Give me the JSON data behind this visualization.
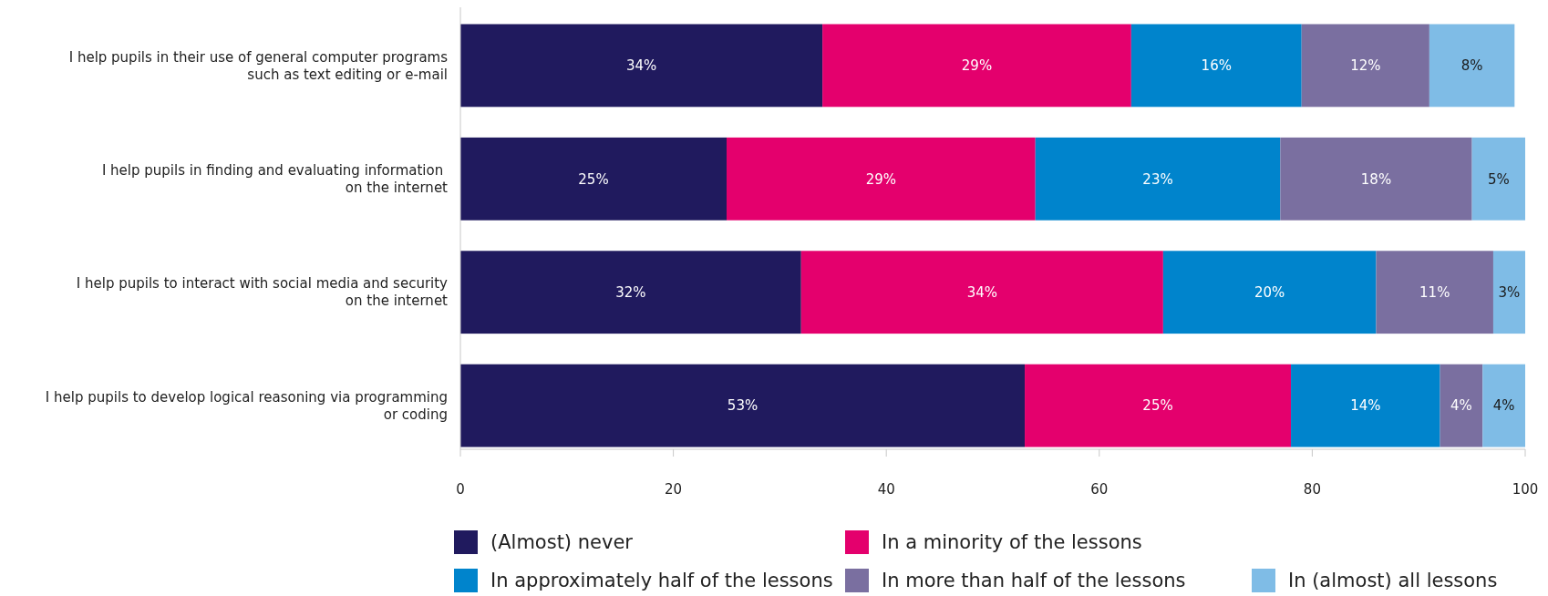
{
  "chart_data": {
    "type": "bar",
    "orientation": "horizontal",
    "stacked": true,
    "legend": "bottom",
    "categories": [
      "I help pupils in their use of general computer programs\nsuch as text editing or e-mail",
      "I help pupils in finding and evaluating information \non the internet",
      "I help pupils to interact with social media and security\non the internet",
      "I help pupils to develop logical reasoning via programming\nor coding"
    ],
    "series": [
      {
        "name": "(Almost) never",
        "color": "#201a5e",
        "values": [
          34,
          25,
          32,
          53
        ],
        "value_labels": [
          "34%",
          "25%",
          "32%",
          "53%"
        ]
      },
      {
        "name": "In a minority of the lessons",
        "color": "#e4006d",
        "values": [
          29,
          29,
          34,
          25
        ],
        "value_labels": [
          "29%",
          "29%",
          "34%",
          "25%"
        ]
      },
      {
        "name": "In approximately half of the lessons",
        "color": "#0084cc",
        "values": [
          16,
          23,
          20,
          14
        ],
        "value_labels": [
          "16%",
          "23%",
          "20%",
          "14%"
        ]
      },
      {
        "name": "In more than half of the lessons",
        "color": "#7a6fa0",
        "values": [
          12,
          18,
          11,
          4
        ],
        "value_labels": [
          "12%",
          "18%",
          "11%",
          "4%"
        ]
      },
      {
        "name": "In (almost) all lessons",
        "color": "#7fbce6",
        "values": [
          8,
          5,
          3,
          4
        ],
        "value_labels": [
          "8%",
          "5%",
          "3%",
          "4%"
        ]
      }
    ],
    "xlim": [
      0,
      100
    ],
    "xticks": [
      0,
      20,
      40,
      60,
      80,
      100
    ]
  }
}
